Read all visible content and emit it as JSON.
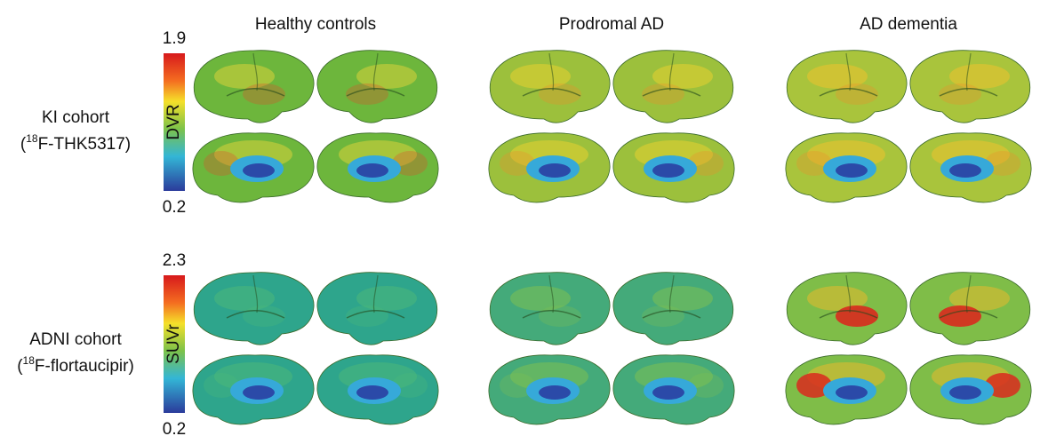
{
  "columns": [
    "Healthy controls",
    "Prodromal AD",
    "AD dementia"
  ],
  "rows": [
    {
      "name": "KI cohort",
      "tracer": {
        "open": "(",
        "isotope": "18",
        "compound": "F-THK5317)"
      },
      "colorbar": {
        "max": 1.9,
        "min": 0.2,
        "label": "DVR"
      }
    },
    {
      "name": "ADNI cohort",
      "tracer": {
        "open": "(",
        "isotope": "18",
        "compound": "F-flortaucipir)"
      },
      "colorbar": {
        "max": 2.3,
        "min": 0.2,
        "label": "SUVr"
      }
    }
  ]
}
